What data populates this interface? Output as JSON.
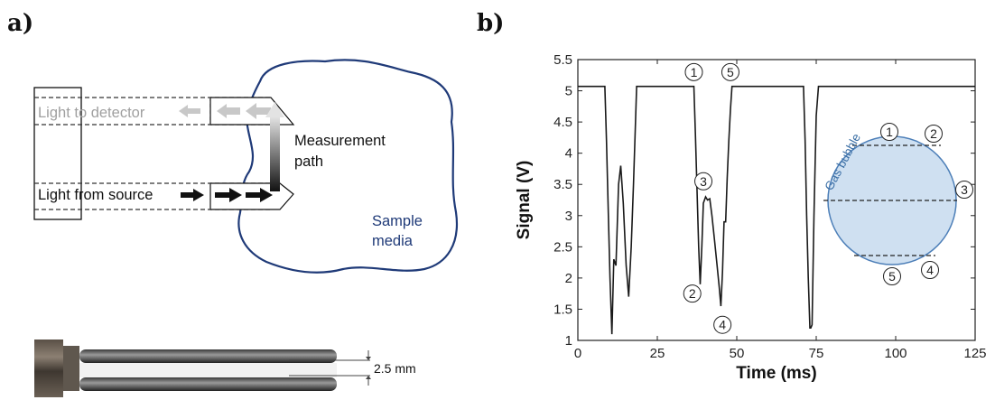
{
  "panel_a": {
    "label": "a)",
    "light_to_detector": "Light to detector",
    "light_from_source": "Light from source",
    "measurement_path_line1": "Measurement",
    "measurement_path_line2": "path",
    "sample_media_line1": "Sample",
    "sample_media_line2": "media",
    "scale_label": "2.5 mm",
    "colors": {
      "sample_outline": "#1f3a78",
      "light_gray": "#c8c8c8",
      "arrow_dark": "#111111"
    }
  },
  "panel_b": {
    "label": "b)",
    "gas_bubble_label": "Gas bubble",
    "bubble_point_labels": [
      "1",
      "2",
      "3",
      "4",
      "5"
    ],
    "colors": {
      "bubble_fill": "#cfe0f1",
      "bubble_stroke": "#4d7fb8",
      "bubble_text": "#3a6ea5",
      "trace": "#1a1a1a"
    }
  },
  "chart_data": {
    "type": "line",
    "xlabel": "Time (ms)",
    "ylabel": "Signal (V)",
    "xlim": [
      0,
      125
    ],
    "ylim": [
      1,
      5.5
    ],
    "xticks": [
      0,
      25,
      50,
      75,
      100,
      125
    ],
    "yticks": [
      1,
      1.5,
      2,
      2.5,
      3,
      3.5,
      4,
      4.5,
      5,
      5.5
    ],
    "grid": false,
    "series": [
      {
        "x": [
          0,
          8.5,
          9.0,
          9.6,
          10.1,
          10.7,
          11.3,
          12.0,
          12.8,
          13.5,
          14.3,
          15.2,
          16.0,
          16.8,
          17.5,
          18.0,
          18.5,
          19.2,
          36.5,
          37.0,
          37.5,
          38.0,
          38.5,
          39.0,
          39.5,
          40.2,
          40.8,
          41.5,
          42.2,
          43.0,
          43.8,
          44.5,
          45.0,
          45.5,
          46.0,
          46.5,
          47.0,
          47.5,
          48.0,
          48.5,
          49.3,
          71.0,
          71.5,
          72.0,
          72.5,
          73.0,
          73.3,
          73.7,
          74.3,
          75.0,
          75.7,
          125
        ],
        "y": [
          5.07,
          5.07,
          4.2,
          3.0,
          2.0,
          1.1,
          2.3,
          2.2,
          3.5,
          3.8,
          3.2,
          2.2,
          1.7,
          2.5,
          3.5,
          4.3,
          5.07,
          5.07,
          5.07,
          4.3,
          3.4,
          2.5,
          1.9,
          2.5,
          3.2,
          3.3,
          3.25,
          3.27,
          3.0,
          2.6,
          2.2,
          1.85,
          1.55,
          2.1,
          2.9,
          2.9,
          3.6,
          4.2,
          4.7,
          5.07,
          5.07,
          5.07,
          4.2,
          3.0,
          2.0,
          1.2,
          1.2,
          1.25,
          3.0,
          4.6,
          5.07,
          5.07
        ]
      }
    ],
    "annotations": [
      {
        "text": "1",
        "x": 36.5,
        "y": 5.3
      },
      {
        "text": "5",
        "x": 48.0,
        "y": 5.3
      },
      {
        "text": "3",
        "x": 39.5,
        "y": 3.55
      },
      {
        "text": "2",
        "x": 36.0,
        "y": 1.75
      },
      {
        "text": "4",
        "x": 45.5,
        "y": 1.25
      }
    ]
  }
}
